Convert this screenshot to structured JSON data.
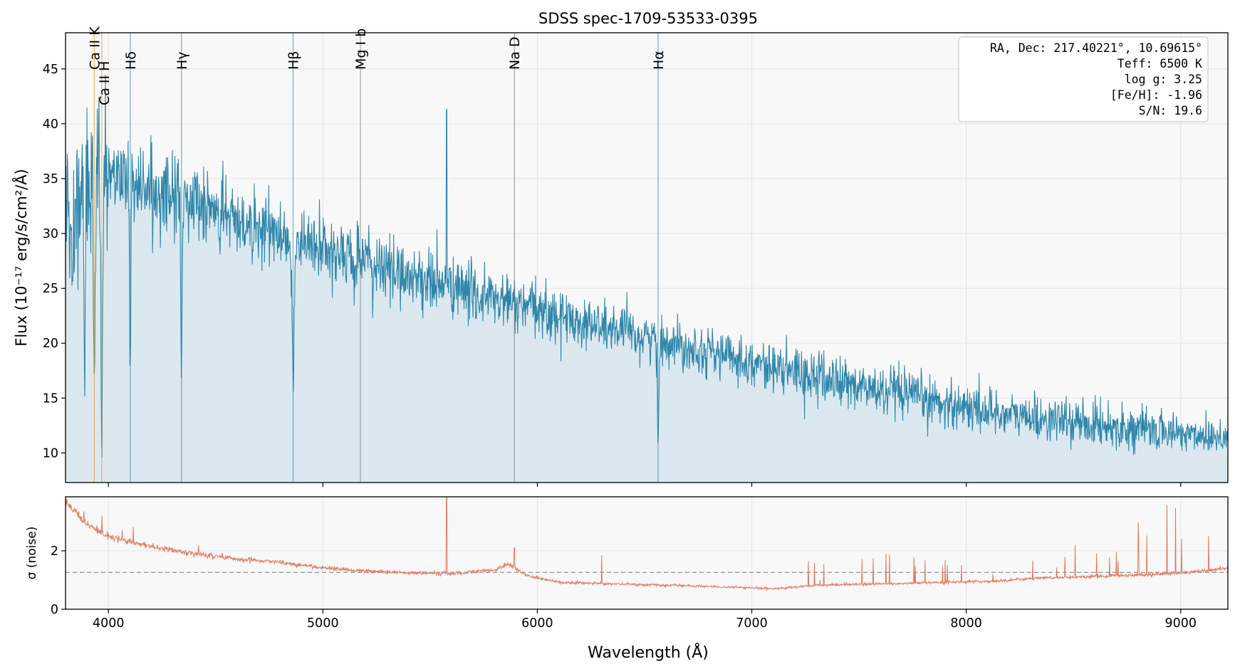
{
  "title": "SDSS spec-1709-53533-0395",
  "info_box": {
    "lines": [
      "RA, Dec: 217.40221°, 10.69615°",
      "Teff: 6500 K",
      "log g: 3.25",
      "[Fe/H]: -1.96",
      "S/N: 19.6"
    ]
  },
  "colors": {
    "flux": "#2e86ab",
    "flux_fill": "#dbe8ef",
    "noise": "#e07a5f",
    "balmer": "#2e86ab",
    "calcium": "#f18f01",
    "metal": "#777777",
    "panel_bg": "#f8f8f8",
    "grid": "#e4e4e4"
  },
  "chart_data": [
    {
      "type": "line",
      "panel": "flux",
      "xlabel": "",
      "ylabel": "Flux (10⁻¹⁷ erg/s/cm²/Å)",
      "xlim": [
        3800,
        9220
      ],
      "ylim": [
        7.3,
        48.3
      ],
      "x_ticks": [
        4000,
        5000,
        6000,
        7000,
        8000,
        9000
      ],
      "y_ticks": [
        10,
        15,
        20,
        25,
        30,
        35,
        40,
        45
      ],
      "y_tick_labels": [
        "10",
        "15",
        "20",
        "25",
        "30",
        "35",
        "40",
        "45"
      ],
      "grid": true,
      "continuum_anchors": {
        "x": [
          3800,
          3900,
          4000,
          4100,
          4200,
          4400,
          4600,
          4800,
          5000,
          5200,
          5400,
          5600,
          5800,
          6000,
          6200,
          6400,
          6600,
          6800,
          7000,
          7200,
          7400,
          7600,
          7800,
          8000,
          8200,
          8400,
          8600,
          8800,
          9000,
          9220
        ],
        "y": [
          30.5,
          33.5,
          35.5,
          35.0,
          34.2,
          32.6,
          31.2,
          29.8,
          28.5,
          27.3,
          26.2,
          25.1,
          24.0,
          23.0,
          22.0,
          21.0,
          20.2,
          19.3,
          18.3,
          17.3,
          16.5,
          15.6,
          14.9,
          14.2,
          13.5,
          13.0,
          12.6,
          12.2,
          11.8,
          11.5
        ]
      },
      "spectral_lines": [
        {
          "label": "Ca II K",
          "x": 3934,
          "group": "calcium",
          "depth": 0.55
        },
        {
          "label": "Ca II H",
          "x": 3969,
          "group": "calcium",
          "depth": 0.65
        },
        {
          "label": "Hδ",
          "x": 4102,
          "group": "balmer",
          "depth": 0.5
        },
        {
          "label": "Hγ",
          "x": 4341,
          "group": "balmer",
          "depth": 0.45
        },
        {
          "label": "Hβ",
          "x": 4861,
          "group": "balmer",
          "depth": 0.48
        },
        {
          "label": "Mg I b",
          "x": 5175,
          "group": "metal",
          "depth": 0.0
        },
        {
          "label": "Na D",
          "x": 5893,
          "group": "metal",
          "depth": 0.0
        },
        {
          "label": "Hα",
          "x": 6563,
          "group": "balmer",
          "depth": 0.4
        }
      ],
      "extra_absorptions": [
        {
          "x": 3832,
          "depth": 0.22
        },
        {
          "x": 3889,
          "depth": 0.4
        }
      ],
      "emission_spikes": [
        {
          "x": 5577,
          "peak": 41.3
        }
      ]
    },
    {
      "type": "line",
      "panel": "noise",
      "xlabel": "Wavelength (Å)",
      "ylabel": "σ (noise)",
      "xlim": [
        3800,
        9220
      ],
      "ylim": [
        0,
        3.85
      ],
      "x_ticks": [
        4000,
        5000,
        6000,
        7000,
        8000,
        9000
      ],
      "x_tick_labels": [
        "4000",
        "5000",
        "6000",
        "7000",
        "8000",
        "9000"
      ],
      "y_ticks": [
        0,
        2
      ],
      "y_tick_labels": [
        "0",
        "2"
      ],
      "reference_line": 1.26,
      "grid": true,
      "baseline_anchors": {
        "x": [
          3800,
          3900,
          4000,
          4200,
          4400,
          4600,
          4800,
          5000,
          5200,
          5400,
          5600,
          5800,
          5870,
          5950,
          6100,
          6300,
          6500,
          6800,
          7000,
          7100,
          7300,
          7500,
          7700,
          7900,
          8100,
          8300,
          8500,
          8700,
          8900,
          9100,
          9220
        ],
        "y": [
          3.7,
          2.9,
          2.5,
          2.15,
          1.9,
          1.72,
          1.6,
          1.42,
          1.3,
          1.25,
          1.22,
          1.35,
          1.55,
          1.15,
          0.92,
          0.88,
          0.84,
          0.78,
          0.73,
          0.7,
          0.82,
          0.85,
          0.88,
          0.93,
          0.95,
          1.05,
          1.1,
          1.15,
          1.2,
          1.3,
          1.4
        ]
      },
      "emission_spikes": [
        {
          "x": 5577,
          "peak": 3.85
        },
        {
          "x": 5893,
          "peak": 2.1
        },
        {
          "x": 6300,
          "peak": 1.85
        }
      ]
    }
  ]
}
